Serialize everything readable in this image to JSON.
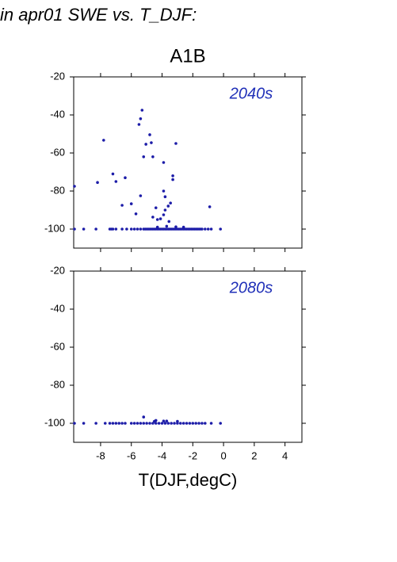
{
  "header": "in apr01 SWE vs. T_DJF:",
  "chart_data": [
    {
      "type": "scatter",
      "title": "A1B",
      "annotation": "2040s",
      "color": "#1c1ca8",
      "annotation_color": "#2030b8",
      "xlim": [
        -9.75,
        5.1
      ],
      "ylim": [
        -110,
        -20
      ],
      "xticks": [
        -8,
        -6,
        -4,
        -2,
        0,
        2,
        4
      ],
      "xtick_labels": false,
      "yticks": [
        -20,
        -40,
        -60,
        -80,
        -100
      ],
      "x": [
        -9.7,
        -8.2,
        -7.8,
        -7.2,
        -7.0,
        -6.4,
        -6.6,
        -6.0,
        -5.7,
        -5.5,
        -5.4,
        -5.3,
        -5.4,
        -5.2,
        -5.05,
        -4.8,
        -4.7,
        -4.6,
        -4.6,
        -4.4,
        -4.3,
        -4.1,
        -3.9,
        -3.9,
        -3.9,
        -3.8,
        -3.8,
        -3.6,
        -3.45,
        -3.3,
        -3.3,
        -3.1,
        -3.55,
        -0.9,
        -4.3,
        -3.7,
        -3.1,
        -2.6,
        -9.7,
        -9.1,
        -8.3,
        -7.4,
        -7.3,
        -7.2,
        -7.0,
        -6.6,
        -6.3,
        -6.0,
        -5.8,
        -5.6,
        -5.4,
        -5.2,
        -5.1,
        -5.0,
        -4.9,
        -4.8,
        -4.7,
        -4.6,
        -4.5,
        -4.4,
        -4.3,
        -4.2,
        -4.1,
        -4.0,
        -3.9,
        -3.8,
        -3.7,
        -3.6,
        -3.5,
        -3.4,
        -3.3,
        -3.2,
        -3.1,
        -3.0,
        -2.9,
        -2.8,
        -2.7,
        -2.6,
        -2.5,
        -2.4,
        -2.3,
        -2.2,
        -2.1,
        -2.0,
        -1.9,
        -1.8,
        -1.7,
        -1.6,
        -1.5,
        -1.4,
        -1.2,
        -1.0,
        -0.8,
        -0.2
      ],
      "y": [
        -77.5,
        -75.5,
        -53.3,
        -71,
        -75,
        -73,
        -87.5,
        -86.7,
        -92,
        -45,
        -42,
        -37.5,
        -82.5,
        -62,
        -55.4,
        -50.4,
        -54.6,
        -62,
        -93.7,
        -88.8,
        -95,
        -94.6,
        -92.5,
        -65,
        -80,
        -83,
        -90,
        -87.9,
        -86.3,
        -74,
        -72,
        -55,
        -96,
        -88.3,
        -99,
        -98.5,
        -98.8,
        -99,
        -100,
        -100,
        -100,
        -100,
        -100,
        -100,
        -100,
        -100,
        -100,
        -100,
        -100,
        -100,
        -100,
        -100,
        -100,
        -100,
        -100,
        -100,
        -100,
        -100,
        -100,
        -100,
        -100,
        -100,
        -100,
        -100,
        -100,
        -100,
        -100,
        -100,
        -100,
        -100,
        -100,
        -100,
        -100,
        -100,
        -100,
        -100,
        -100,
        -100,
        -100,
        -100,
        -100,
        -100,
        -100,
        -100,
        -100,
        -100,
        -100,
        -100,
        -100,
        -100,
        -100,
        -100,
        -100,
        -100
      ]
    },
    {
      "type": "scatter",
      "annotation": "2080s",
      "color": "#1c1ca8",
      "annotation_color": "#2030b8",
      "x_label": "T(DJF,degC)",
      "xlim": [
        -9.75,
        5.1
      ],
      "ylim": [
        -110,
        -20
      ],
      "xticks": [
        -8,
        -6,
        -4,
        -2,
        0,
        2,
        4
      ],
      "xtick_labels": true,
      "yticks": [
        -20,
        -40,
        -60,
        -80,
        -100
      ],
      "x": [
        -5.2,
        -4.5,
        -3.9,
        -4.4,
        -3.7,
        -3.0,
        -9.7,
        -9.1,
        -8.3,
        -7.7,
        -7.4,
        -7.2,
        -7.0,
        -6.8,
        -6.6,
        -6.4,
        -6.0,
        -5.8,
        -5.6,
        -5.4,
        -5.2,
        -5.0,
        -4.8,
        -4.6,
        -4.4,
        -4.2,
        -4.0,
        -3.8,
        -3.6,
        -3.4,
        -3.2,
        -3.0,
        -2.8,
        -2.6,
        -2.4,
        -2.2,
        -2.0,
        -1.8,
        -1.6,
        -1.4,
        -1.2,
        -0.8,
        -0.2
      ],
      "y": [
        -96.7,
        -99,
        -98.8,
        -98.5,
        -98.8,
        -99,
        -100,
        -100,
        -100,
        -100,
        -100,
        -100,
        -100,
        -100,
        -100,
        -100,
        -100,
        -100,
        -100,
        -100,
        -100,
        -100,
        -100,
        -100,
        -100,
        -100,
        -100,
        -100,
        -100,
        -100,
        -100,
        -100,
        -100,
        -100,
        -100,
        -100,
        -100,
        -100,
        -100,
        -100,
        -100,
        -100,
        -100
      ]
    }
  ]
}
